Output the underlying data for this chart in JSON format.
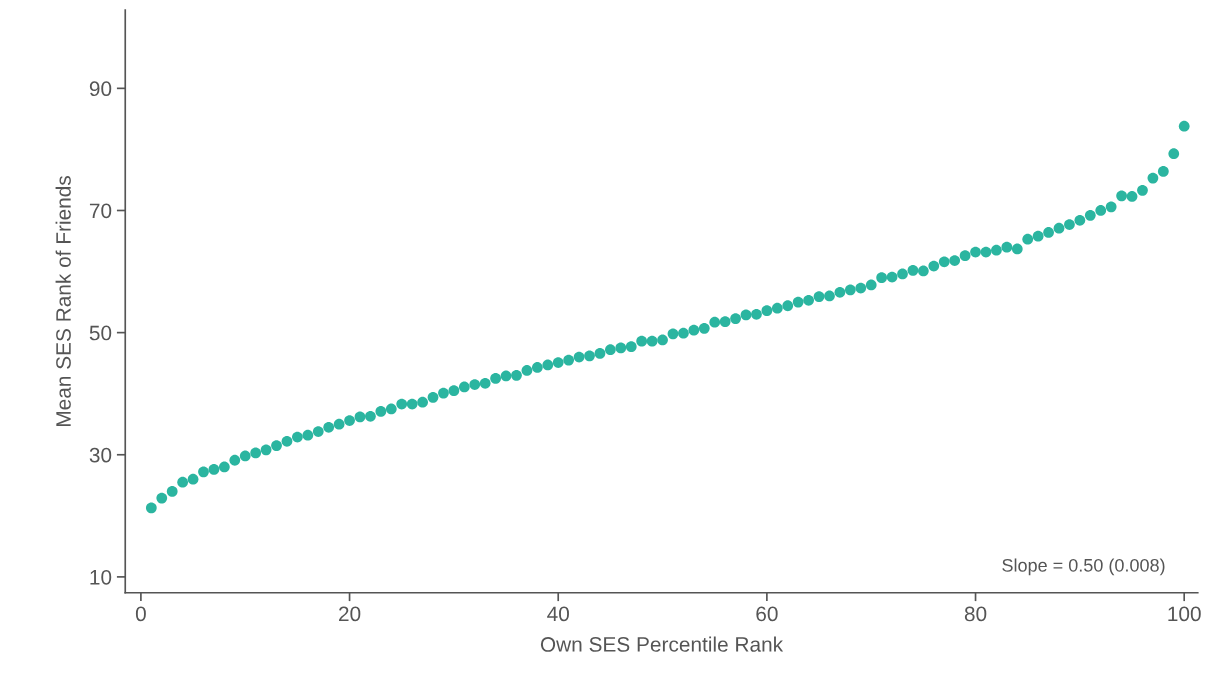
{
  "chart_data": {
    "type": "scatter",
    "xlabel": "Own SES Percentile Rank",
    "ylabel": "Mean SES Rank of Friends",
    "annotations": [
      "Slope = 0.50 (0.008)"
    ],
    "x": [
      1,
      2,
      3,
      4,
      5,
      6,
      7,
      8,
      9,
      10,
      11,
      12,
      13,
      14,
      15,
      16,
      17,
      18,
      19,
      20,
      21,
      22,
      23,
      24,
      25,
      26,
      27,
      28,
      29,
      30,
      31,
      32,
      33,
      34,
      35,
      36,
      37,
      38,
      39,
      40,
      41,
      42,
      43,
      44,
      45,
      46,
      47,
      48,
      49,
      50,
      51,
      52,
      53,
      54,
      55,
      56,
      57,
      58,
      59,
      60,
      61,
      62,
      63,
      64,
      65,
      66,
      67,
      68,
      69,
      70,
      71,
      72,
      73,
      74,
      75,
      76,
      77,
      78,
      79,
      80,
      81,
      82,
      83,
      84,
      85,
      86,
      87,
      88,
      89,
      90,
      91,
      92,
      93,
      94,
      95,
      96,
      97,
      98,
      99,
      100
    ],
    "series": [
      {
        "color": "#2bb5a0",
        "values": [
          21.3,
          22.9,
          24.0,
          25.5,
          26.0,
          27.2,
          27.6,
          28.0,
          29.1,
          29.8,
          30.3,
          30.8,
          31.5,
          32.2,
          32.9,
          33.2,
          33.8,
          34.5,
          35.0,
          35.6,
          36.2,
          36.3,
          37.1,
          37.5,
          38.3,
          38.3,
          38.6,
          39.4,
          40.1,
          40.5,
          41.1,
          41.5,
          41.7,
          42.5,
          42.9,
          43.0,
          43.8,
          44.3,
          44.7,
          45.1,
          45.5,
          46.0,
          46.2,
          46.6,
          47.2,
          47.5,
          47.7,
          48.6,
          48.6,
          48.8,
          49.8,
          49.9,
          50.4,
          50.7,
          51.7,
          51.8,
          52.3,
          52.9,
          53.0,
          53.6,
          54.0,
          54.4,
          55.0,
          55.3,
          55.9,
          56.0,
          56.6,
          57.0,
          57.3,
          57.8,
          59.0,
          59.1,
          59.6,
          60.2,
          60.1,
          60.9,
          61.6,
          61.8,
          62.6,
          63.2,
          63.2,
          63.5,
          64.0,
          63.7,
          65.3,
          65.8,
          66.4,
          67.1,
          67.7,
          68.4,
          69.2,
          70.0,
          70.6,
          72.4,
          72.3,
          73.3,
          75.3,
          76.4,
          79.3,
          83.8
        ]
      }
    ],
    "marker": "circle",
    "xlim": [
      -1.5,
      101.3
    ],
    "ylim": [
      7.4,
      102.8
    ],
    "xticks": [
      0,
      20,
      40,
      60,
      80,
      100
    ],
    "yticks": [
      10,
      30,
      50,
      70,
      90
    ],
    "grid": false,
    "legend": false
  }
}
